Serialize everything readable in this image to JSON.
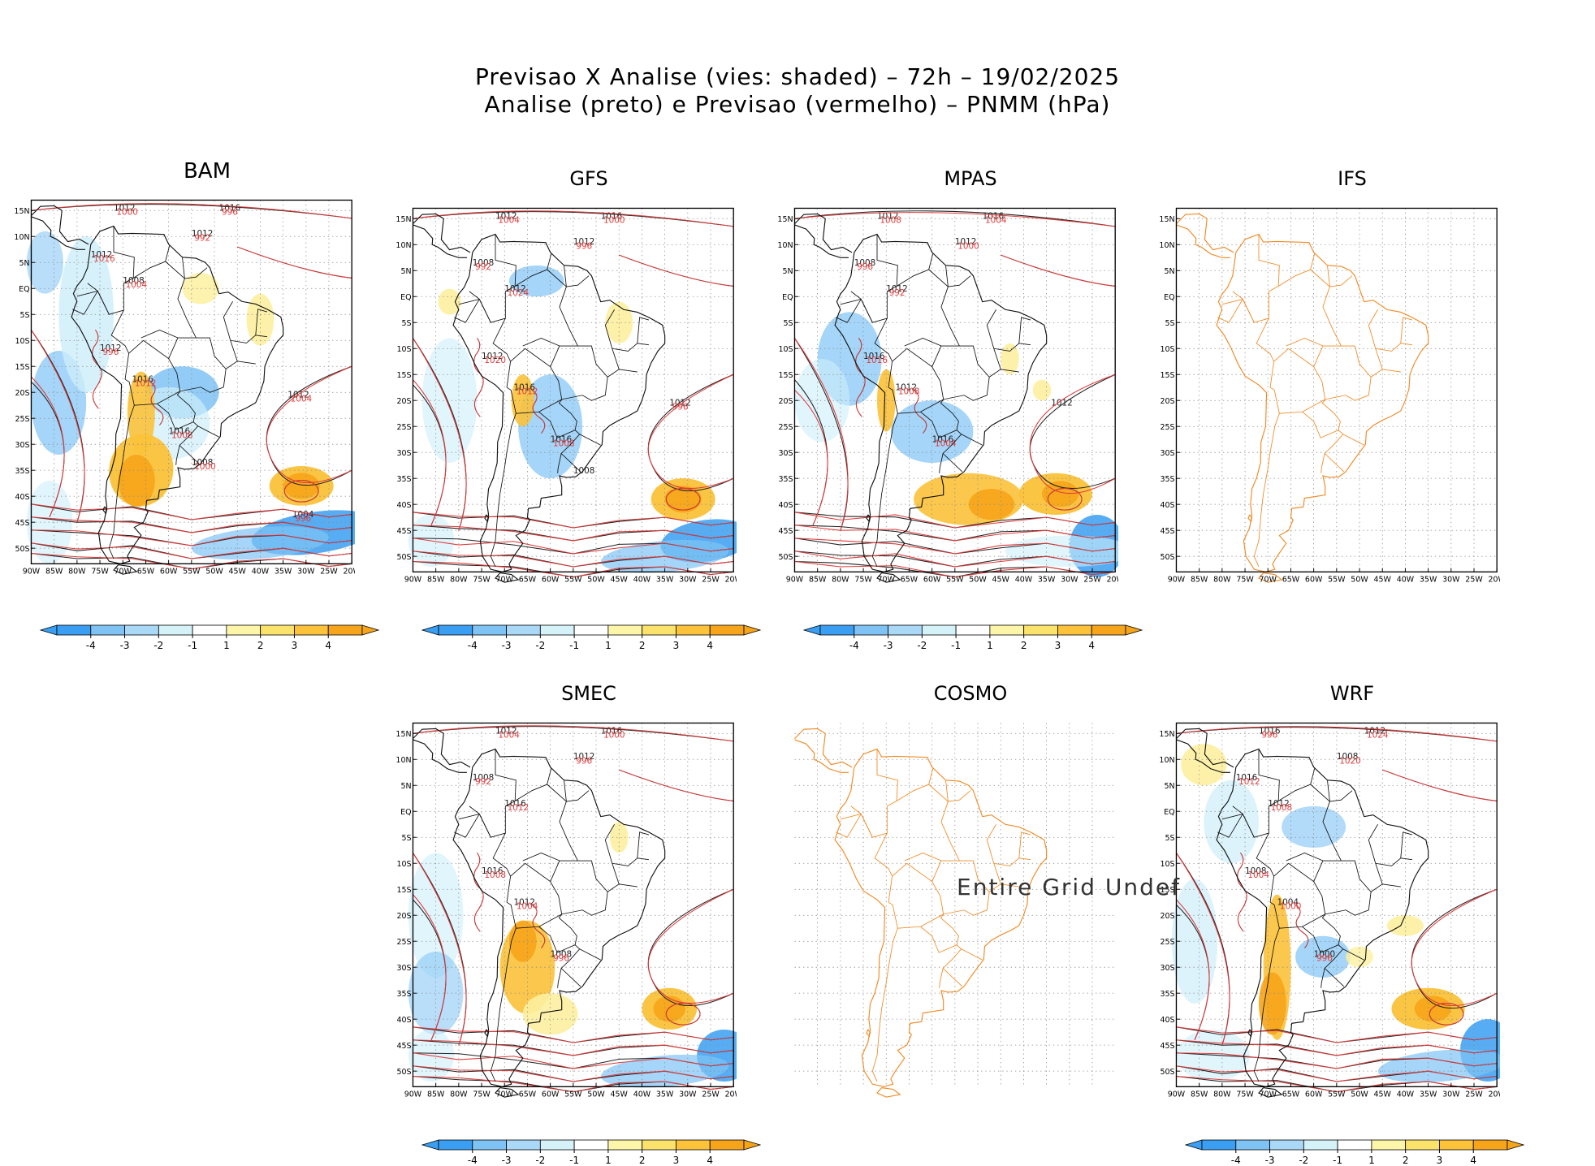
{
  "header": {
    "line1": "Previsao X Analise (vies: shaded) – 72h – 19/02/2025",
    "line2": "Analise (preto) e Previsao (vermelho) – PNMM (hPa)"
  },
  "axes": {
    "lat_labels": [
      "15N",
      "10N",
      "5N",
      "EQ",
      "5S",
      "10S",
      "15S",
      "20S",
      "25S",
      "30S",
      "35S",
      "40S",
      "45S",
      "50S"
    ],
    "lon_labels": [
      "90W",
      "85W",
      "80W",
      "75W",
      "70W",
      "65W",
      "60W",
      "55W",
      "50W",
      "45W",
      "40W",
      "35W",
      "30W",
      "25W",
      "20W"
    ]
  },
  "colorbar": {
    "labels": [
      "-4",
      "-3",
      "-2",
      "-1",
      "1",
      "2",
      "3",
      "4"
    ],
    "colors": [
      "#3a9ff2",
      "#7fc3f5",
      "#a9d9f7",
      "#d4f2f8",
      "#ffffff",
      "#fdf6a8",
      "#fbe26b",
      "#fbc23a",
      "#f6a41a"
    ]
  },
  "panels": [
    {
      "name": "BAM",
      "has_data": true,
      "colorbar": true
    },
    {
      "name": "GFS",
      "has_data": true,
      "colorbar": true
    },
    {
      "name": "MPAS",
      "has_data": true,
      "colorbar": true
    },
    {
      "name": "IFS",
      "has_data": false,
      "colorbar": false
    },
    {
      "name": "SMEC",
      "has_data": true,
      "colorbar": true
    },
    {
      "name": "COSMO",
      "has_data": false,
      "colorbar": false,
      "message": "Entire Grid Undef"
    },
    {
      "name": "WRF",
      "has_data": true,
      "colorbar": true
    }
  ],
  "contour_labels": {
    "BAM": [
      "1012",
      "1016",
      "1012",
      "1012",
      "1008",
      "1012",
      "1016",
      "1016",
      "1012",
      "1008",
      "1004",
      "1000",
      "996",
      "992",
      "1016",
      "1004",
      "996",
      "1012",
      "1008",
      "1004",
      "1000",
      "996"
    ],
    "GFS": [
      "1012",
      "1016",
      "1012",
      "1008",
      "1012",
      "1012",
      "1016",
      "1016",
      "1012",
      "1008",
      "1004",
      "1000",
      "996",
      "992",
      "1024",
      "1020",
      "1012",
      "1008",
      "996"
    ],
    "MPAS": [
      "1012",
      "1016",
      "1012",
      "1008",
      "1012",
      "1016",
      "1012",
      "1016",
      "1012",
      "1008",
      "1004",
      "1000",
      "996",
      "992",
      "1016",
      "1008",
      "1004"
    ],
    "SMEC": [
      "1012",
      "1016",
      "1012",
      "1008",
      "1016",
      "1016",
      "1012",
      "1008",
      "1004",
      "1000",
      "996",
      "992",
      "1012",
      "1008",
      "1004",
      "996"
    ],
    "WRF": [
      "1016",
      "1012",
      "1008",
      "1016",
      "1012",
      "1008",
      "1004",
      "1000",
      "996",
      "1024",
      "1020",
      "1012",
      "1008",
      "1004",
      "1000",
      "996"
    ]
  },
  "map_colors": {
    "analysis": "#222222",
    "forecast": "#e03a3a",
    "coast_undef": "#f08a24",
    "grid": "#8a8a8a",
    "warm": "#fbc23a",
    "warm_strong": "#f6a41a",
    "warm_light": "#fdf0a0",
    "cool": "#7fc3f5",
    "cool_strong": "#3a9ff2",
    "cool_light": "#cdeefa"
  }
}
